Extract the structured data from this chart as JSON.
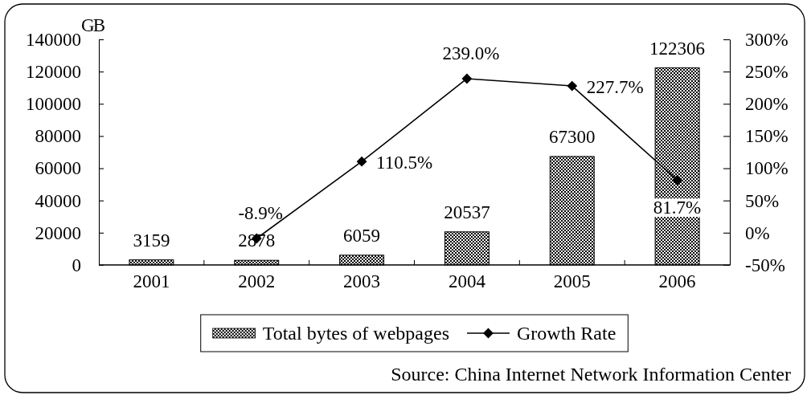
{
  "chart_data": {
    "type": "bar",
    "categories": [
      "2001",
      "2002",
      "2003",
      "2004",
      "2005",
      "2006"
    ],
    "series": [
      {
        "name": "Total bytes of webpages",
        "color": "#000000",
        "values": [
          3159,
          2878,
          6059,
          20537,
          67300,
          122306
        ],
        "value_labels": [
          "3159",
          "2878",
          "6059",
          "20537",
          "67300",
          "122306"
        ]
      },
      {
        "name": "Growth Rate",
        "type": "line",
        "axis": "y2",
        "color": "#000000",
        "values": [
          null,
          -8.9,
          110.5,
          239.0,
          227.7,
          81.7
        ],
        "value_labels": [
          null,
          "-8.9%",
          "110.5%",
          "239.0%",
          "227.7%",
          "81.7%"
        ]
      }
    ],
    "ylabel": "GB",
    "ylim": [
      0,
      140000
    ],
    "yticks": [
      0,
      20000,
      40000,
      60000,
      80000,
      100000,
      120000,
      140000
    ],
    "y2lim": [
      -50,
      300
    ],
    "y2ticks": [
      {
        "value": -50,
        "label": "-50%"
      },
      {
        "value": 0,
        "label": "0%"
      },
      {
        "value": 50,
        "label": "50%"
      },
      {
        "value": 100,
        "label": "100%"
      },
      {
        "value": 150,
        "label": "150%"
      },
      {
        "value": 200,
        "label": "200%"
      },
      {
        "value": 250,
        "label": "250%"
      },
      {
        "value": 300,
        "label": "300%"
      }
    ],
    "marker": "diamond",
    "line_style": "solid",
    "legend": "bottom",
    "annotations": [
      "Source: China Internet Network Information Center"
    ]
  }
}
